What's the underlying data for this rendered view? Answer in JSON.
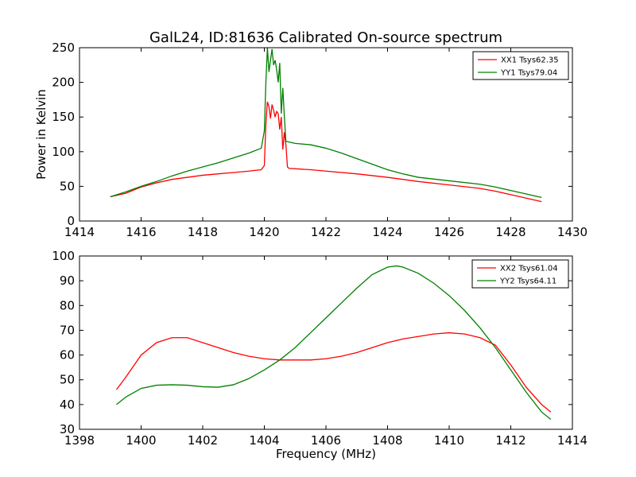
{
  "title": "GalL24, ID:81636 Calibrated On-source spectrum",
  "chart_data": [
    {
      "type": "line",
      "xlabel": "",
      "ylabel": "Power in Kelvin",
      "xlim": [
        1414,
        1430
      ],
      "ylim": [
        0,
        250
      ],
      "xticks": [
        1414,
        1416,
        1418,
        1420,
        1422,
        1424,
        1426,
        1428,
        1430
      ],
      "yticks": [
        0,
        50,
        100,
        150,
        200,
        250
      ],
      "legend_position": "top-right",
      "grid": false,
      "series": [
        {
          "name": "XX1 Tsys62.35",
          "color": "#ff0000",
          "points": [
            [
              1415.0,
              35
            ],
            [
              1415.5,
              40
            ],
            [
              1416.0,
              49
            ],
            [
              1416.5,
              55
            ],
            [
              1417.0,
              60
            ],
            [
              1417.5,
              63
            ],
            [
              1418.0,
              66
            ],
            [
              1418.5,
              68
            ],
            [
              1419.0,
              70
            ],
            [
              1419.5,
              72
            ],
            [
              1419.9,
              74
            ],
            [
              1420.0,
              80
            ],
            [
              1420.05,
              140
            ],
            [
              1420.1,
              172
            ],
            [
              1420.15,
              165
            ],
            [
              1420.2,
              148
            ],
            [
              1420.25,
              168
            ],
            [
              1420.3,
              160
            ],
            [
              1420.35,
              150
            ],
            [
              1420.4,
              158
            ],
            [
              1420.45,
              155
            ],
            [
              1420.5,
              132
            ],
            [
              1420.55,
              150
            ],
            [
              1420.6,
              103
            ],
            [
              1420.65,
              128
            ],
            [
              1420.7,
              110
            ],
            [
              1420.75,
              78
            ],
            [
              1420.8,
              76
            ],
            [
              1421.5,
              74
            ],
            [
              1422.0,
              72
            ],
            [
              1423.0,
              68
            ],
            [
              1424.0,
              63
            ],
            [
              1425.0,
              57
            ],
            [
              1426.0,
              52
            ],
            [
              1427.0,
              47
            ],
            [
              1427.5,
              43
            ],
            [
              1428.0,
              38
            ],
            [
              1428.5,
              33
            ],
            [
              1429.0,
              28
            ]
          ]
        },
        {
          "name": "YY1 Tsys79.04",
          "color": "#008000",
          "points": [
            [
              1415.0,
              35
            ],
            [
              1415.5,
              42
            ],
            [
              1416.0,
              50
            ],
            [
              1416.5,
              57
            ],
            [
              1417.0,
              65
            ],
            [
              1417.5,
              72
            ],
            [
              1418.0,
              78
            ],
            [
              1418.5,
              84
            ],
            [
              1419.0,
              91
            ],
            [
              1419.5,
              98
            ],
            [
              1419.9,
              105
            ],
            [
              1420.0,
              130
            ],
            [
              1420.05,
              200
            ],
            [
              1420.1,
              250
            ],
            [
              1420.15,
              215
            ],
            [
              1420.2,
              232
            ],
            [
              1420.25,
              248
            ],
            [
              1420.3,
              225
            ],
            [
              1420.35,
              232
            ],
            [
              1420.4,
              218
            ],
            [
              1420.45,
              200
            ],
            [
              1420.5,
              228
            ],
            [
              1420.55,
              155
            ],
            [
              1420.6,
              192
            ],
            [
              1420.65,
              150
            ],
            [
              1420.7,
              115
            ],
            [
              1421.0,
              112
            ],
            [
              1421.5,
              110
            ],
            [
              1422.0,
              105
            ],
            [
              1422.5,
              98
            ],
            [
              1423.0,
              90
            ],
            [
              1423.5,
              82
            ],
            [
              1424.0,
              74
            ],
            [
              1424.5,
              68
            ],
            [
              1425.0,
              63
            ],
            [
              1426.0,
              58
            ],
            [
              1427.0,
              53
            ],
            [
              1427.5,
              49
            ],
            [
              1428.0,
              44
            ],
            [
              1428.5,
              39
            ],
            [
              1429.0,
              34
            ]
          ]
        }
      ]
    },
    {
      "type": "line",
      "xlabel": "Frequency (MHz)",
      "ylabel": "",
      "xlim": [
        1398,
        1414
      ],
      "ylim": [
        30,
        100
      ],
      "xticks": [
        1398,
        1400,
        1402,
        1404,
        1406,
        1408,
        1410,
        1412,
        1414
      ],
      "yticks": [
        30,
        40,
        50,
        60,
        70,
        80,
        90,
        100
      ],
      "legend_position": "top-right",
      "grid": false,
      "series": [
        {
          "name": "XX2 Tsys61.04",
          "color": "#ff0000",
          "points": [
            [
              1399.2,
              46
            ],
            [
              1399.5,
              51
            ],
            [
              1400.0,
              60
            ],
            [
              1400.5,
              65
            ],
            [
              1401.0,
              67
            ],
            [
              1401.5,
              67
            ],
            [
              1402.0,
              65
            ],
            [
              1402.5,
              63
            ],
            [
              1403.0,
              61
            ],
            [
              1403.5,
              59.5
            ],
            [
              1404.0,
              58.5
            ],
            [
              1404.5,
              58
            ],
            [
              1405.0,
              58
            ],
            [
              1405.5,
              58
            ],
            [
              1406.0,
              58.5
            ],
            [
              1406.5,
              59.5
            ],
            [
              1407.0,
              61
            ],
            [
              1407.5,
              63
            ],
            [
              1408.0,
              65
            ],
            [
              1408.5,
              66.5
            ],
            [
              1409.0,
              67.5
            ],
            [
              1409.5,
              68.5
            ],
            [
              1410.0,
              69
            ],
            [
              1410.5,
              68.5
            ],
            [
              1411.0,
              67
            ],
            [
              1411.5,
              64
            ],
            [
              1412.0,
              56
            ],
            [
              1412.5,
              47
            ],
            [
              1413.0,
              40
            ],
            [
              1413.3,
              37
            ]
          ]
        },
        {
          "name": "YY2 Tsys64.11",
          "color": "#008000",
          "points": [
            [
              1399.2,
              40
            ],
            [
              1399.5,
              43
            ],
            [
              1400.0,
              46.5
            ],
            [
              1400.5,
              47.8
            ],
            [
              1401.0,
              48
            ],
            [
              1401.5,
              47.8
            ],
            [
              1402.0,
              47.2
            ],
            [
              1402.5,
              47
            ],
            [
              1403.0,
              48
            ],
            [
              1403.5,
              50.5
            ],
            [
              1404.0,
              54
            ],
            [
              1404.5,
              58
            ],
            [
              1405.0,
              63
            ],
            [
              1405.5,
              69
            ],
            [
              1406.0,
              75
            ],
            [
              1406.5,
              81
            ],
            [
              1407.0,
              87
            ],
            [
              1407.5,
              92.5
            ],
            [
              1408.0,
              95.5
            ],
            [
              1408.3,
              96
            ],
            [
              1408.5,
              95.5
            ],
            [
              1409.0,
              93
            ],
            [
              1409.5,
              89
            ],
            [
              1410.0,
              84
            ],
            [
              1410.5,
              78
            ],
            [
              1411.0,
              71
            ],
            [
              1411.5,
              63
            ],
            [
              1412.0,
              54
            ],
            [
              1412.5,
              45
            ],
            [
              1413.0,
              37
            ],
            [
              1413.3,
              34
            ]
          ]
        }
      ]
    }
  ]
}
